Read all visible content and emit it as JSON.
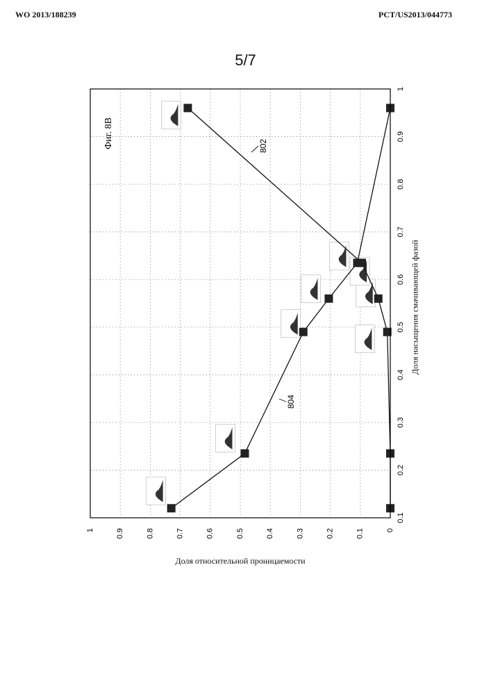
{
  "header": {
    "left": "WO 2013/188239",
    "right": "PCT/US2013/044773"
  },
  "page_number": "5/7",
  "chart_data": {
    "type": "line",
    "figure_label": "Фиг. 8B",
    "xlabel": "Доля относительной проницаемости",
    "ylabel": "Доля насыщения смачивающей фазой",
    "xlim": [
      1,
      0
    ],
    "ylim": [
      0.1,
      1
    ],
    "x_ticks": [
      "1",
      "0.9",
      "0.8",
      "0.7",
      "0.6",
      "0.5",
      "0.4",
      "0.3",
      "0.2",
      "0.1",
      "0"
    ],
    "y_ticks": [
      "0.1",
      "0.2",
      "0.3",
      "0.4",
      "0.5",
      "0.6",
      "0.7",
      "0.8",
      "0.9",
      "1"
    ],
    "grid": true,
    "series": [
      {
        "label": "802",
        "points": [
          [
            0.675,
            0.96
          ],
          [
            0.095,
            0.635
          ],
          [
            0.04,
            0.56
          ],
          [
            0.01,
            0.49
          ],
          [
            0.0,
            0.235
          ],
          [
            0.0,
            0.12
          ]
        ]
      },
      {
        "label": "804",
        "points": [
          [
            0.73,
            0.12
          ],
          [
            0.485,
            0.235
          ],
          [
            0.29,
            0.49
          ],
          [
            0.205,
            0.56
          ],
          [
            0.11,
            0.635
          ],
          [
            0.0,
            0.96
          ]
        ]
      }
    ]
  }
}
